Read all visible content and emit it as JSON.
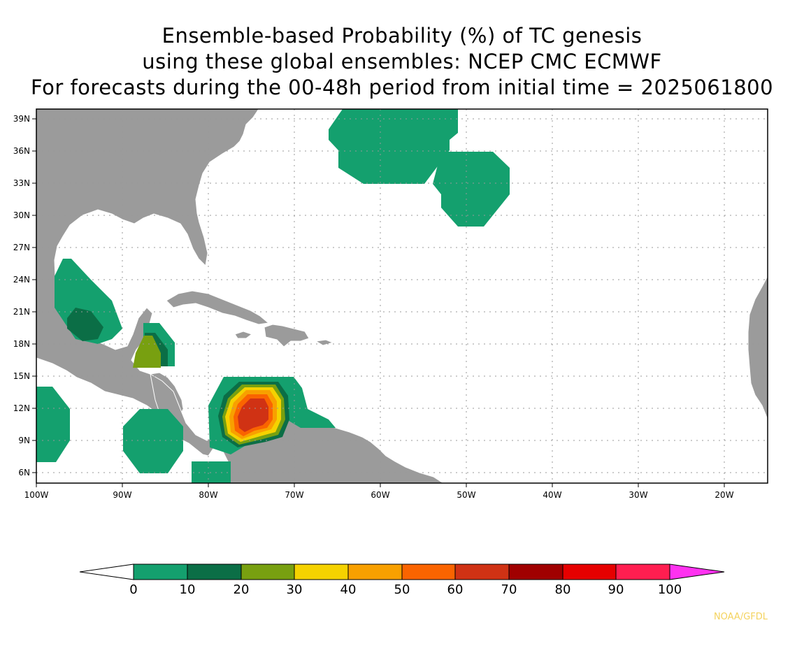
{
  "title": {
    "line1": "Ensemble-based Probability (%) of TC genesis",
    "line2": "using these global ensembles:   NCEP CMC ECMWF",
    "line3": "For forecasts during the 00-48h period from initial time = 2025061800"
  },
  "map": {
    "lat_labels": [
      "39N",
      "36N",
      "33N",
      "30N",
      "27N",
      "24N",
      "21N",
      "18N",
      "15N",
      "12N",
      "9N",
      "6N"
    ],
    "lon_labels": [
      "100W",
      "90W",
      "80W",
      "70W",
      "60W",
      "50W",
      "40W",
      "30W",
      "20W"
    ],
    "land_color": "#9b9b9b",
    "ocean_color": "#ffffff",
    "grid_style": "dotted"
  },
  "colorbar": {
    "labels": [
      "0",
      "10",
      "20",
      "30",
      "40",
      "50",
      "60",
      "70",
      "80",
      "90",
      "100"
    ],
    "colors": [
      "#14a06e",
      "#0b6e46",
      "#78a010",
      "#f5d200",
      "#f8a000",
      "#fa6400",
      "#d03214",
      "#a00000",
      "#e60000",
      "#ff1e50"
    ],
    "over_color": "#ff32f0",
    "under_color": "#ffffff"
  },
  "credit": "NOAA/GFDL"
}
